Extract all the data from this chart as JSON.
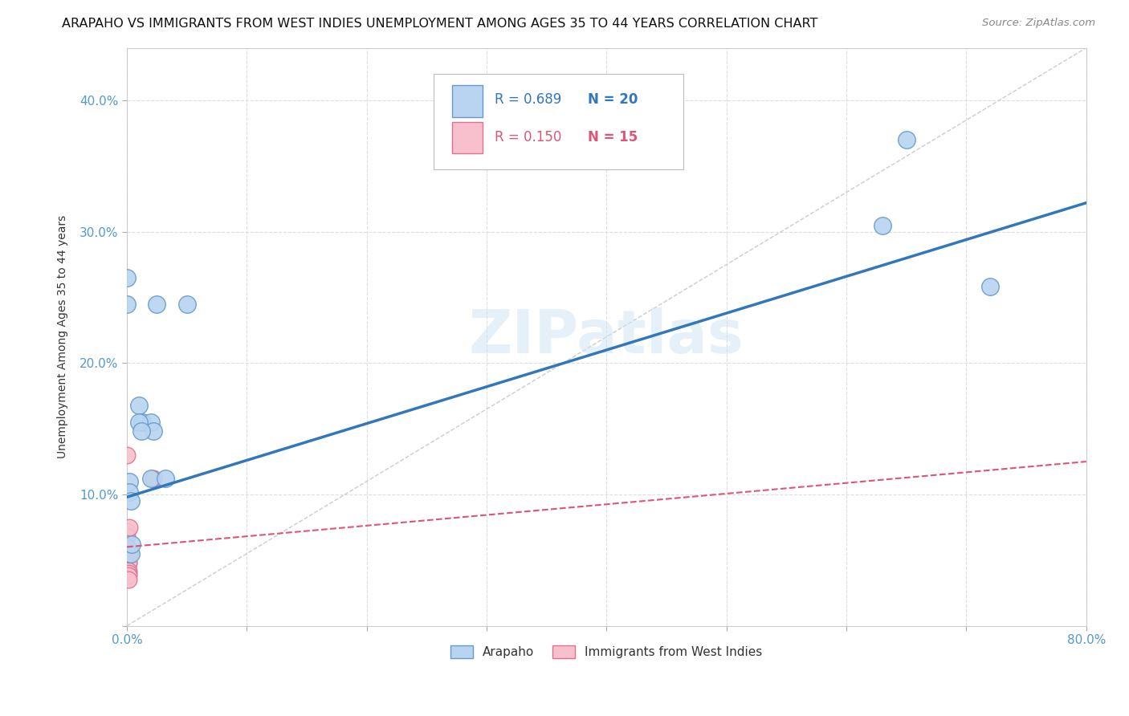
{
  "title": "ARAPAHO VS IMMIGRANTS FROM WEST INDIES UNEMPLOYMENT AMONG AGES 35 TO 44 YEARS CORRELATION CHART",
  "source": "Source: ZipAtlas.com",
  "ylabel": "Unemployment Among Ages 35 to 44 years",
  "watermark": "ZIPatlas",
  "arapaho": {
    "R": 0.689,
    "N": 20,
    "color": "#b8d4f0",
    "edge_color": "#6699cc",
    "line_color": "#3377bb",
    "label": "Arapaho",
    "points_x": [
      0.0,
      0.0,
      0.01,
      0.013,
      0.02,
      0.02,
      0.022,
      0.025,
      0.032,
      0.05,
      0.01,
      0.012,
      0.002,
      0.002,
      0.003,
      0.003,
      0.004,
      0.63,
      0.65,
      0.72
    ],
    "points_y": [
      0.265,
      0.245,
      0.168,
      0.155,
      0.155,
      0.112,
      0.148,
      0.245,
      0.112,
      0.245,
      0.155,
      0.148,
      0.11,
      0.102,
      0.095,
      0.055,
      0.062,
      0.305,
      0.37,
      0.258
    ]
  },
  "west_indies": {
    "R": 0.15,
    "N": 15,
    "color": "#f8c0cc",
    "edge_color": "#e07090",
    "line_color": "#dd5577",
    "label": "Immigrants from West Indies",
    "points_x": [
      0.0,
      0.0,
      0.0,
      0.0,
      0.0,
      0.0,
      0.001,
      0.001,
      0.001,
      0.001,
      0.001,
      0.001,
      0.002,
      0.002,
      0.022
    ],
    "points_y": [
      0.13,
      0.072,
      0.068,
      0.06,
      0.055,
      0.05,
      0.048,
      0.048,
      0.042,
      0.04,
      0.038,
      0.035,
      0.075,
      0.055,
      0.112
    ]
  },
  "xlim": [
    0.0,
    0.8
  ],
  "ylim": [
    0.0,
    0.44
  ],
  "xticks": [
    0.0,
    0.1,
    0.2,
    0.3,
    0.4,
    0.5,
    0.6,
    0.7,
    0.8
  ],
  "yticks": [
    0.0,
    0.1,
    0.2,
    0.3,
    0.4
  ],
  "ytick_labels": [
    "",
    "10.0%",
    "20.0%",
    "30.0%",
    "40.0%"
  ],
  "xtick_labels": [
    "0.0%",
    "",
    "",
    "",
    "",
    "",
    "",
    "",
    "80.0%"
  ],
  "axis_color": "#5599cc",
  "grid_color": "#dddddd",
  "title_fontsize": 11.5,
  "tick_fontsize": 11,
  "blue_line_x0": 0.0,
  "blue_line_y0": 0.098,
  "blue_line_x1": 0.8,
  "blue_line_y1": 0.322,
  "pink_line_x0": 0.0,
  "pink_line_y0": 0.06,
  "pink_line_x1": 0.8,
  "pink_line_y1": 0.125
}
